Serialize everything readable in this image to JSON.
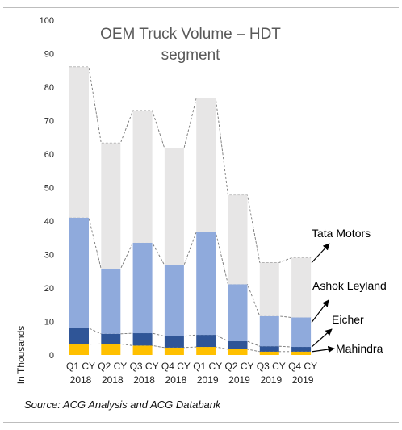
{
  "chart_data": {
    "type": "bar",
    "stacked": true,
    "title_lines": [
      "OEM Truck Volume – HDT",
      "segment"
    ],
    "ylabel": "In Thousands",
    "xlabel": "",
    "ylim": [
      0,
      100
    ],
    "yticks": [
      0,
      10,
      20,
      30,
      40,
      50,
      60,
      70,
      80,
      90,
      100
    ],
    "categories": [
      [
        "Q1 CY",
        "2018"
      ],
      [
        "Q2 CY",
        "2018"
      ],
      [
        "Q3 CY",
        "2018"
      ],
      [
        "Q4 CY",
        "2018"
      ],
      [
        "Q1 CY",
        "2019"
      ],
      [
        "Q2 CY",
        "2019"
      ],
      [
        "Q3 CY",
        "2019"
      ],
      [
        "Q4 CY",
        "2019"
      ]
    ],
    "series": [
      {
        "name": "Mahindra",
        "color": "#ffc000",
        "values": [
          3.2,
          3.3,
          2.8,
          2.2,
          2.4,
          1.7,
          1.0,
          1.0
        ]
      },
      {
        "name": "Eicher",
        "color": "#2f5597",
        "values": [
          4.8,
          3.0,
          3.7,
          3.4,
          3.6,
          2.4,
          1.6,
          1.4
        ]
      },
      {
        "name": "Ashok Leyland",
        "color": "#8faadc",
        "values": [
          33.0,
          19.4,
          27.0,
          21.2,
          30.7,
          17.0,
          9.0,
          8.8
        ]
      },
      {
        "name": "Tata Motors",
        "color": "#e7e6e6",
        "values": [
          45.0,
          37.6,
          39.5,
          34.9,
          40.0,
          26.6,
          16.0,
          17.8
        ]
      }
    ],
    "legend_placement": "right, arrow callouts",
    "grid": false
  },
  "source_text": "Source: ACG Analysis and ACG Databank"
}
